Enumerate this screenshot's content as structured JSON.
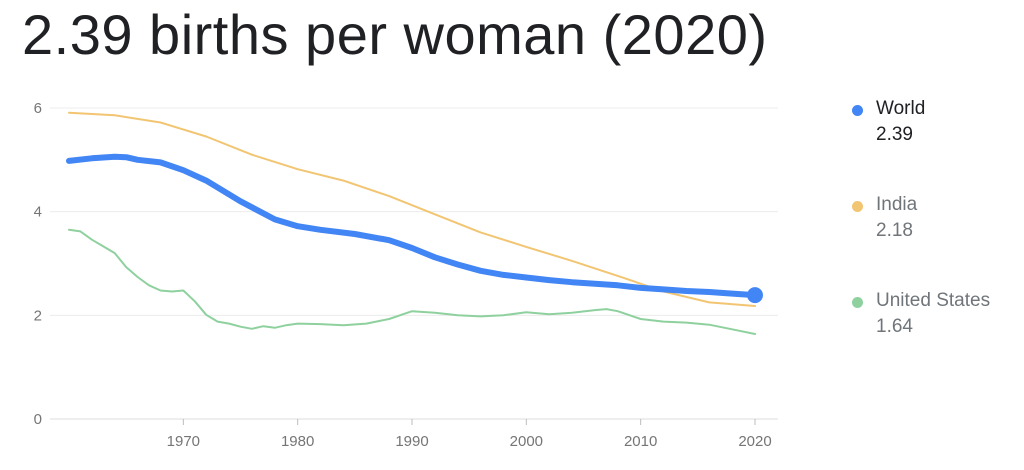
{
  "title": "2.39 births per woman (2020)",
  "chart_data": {
    "type": "line",
    "ylim": [
      0,
      6
    ],
    "xlim": [
      1960,
      2020
    ],
    "y_ticks": [
      0,
      2,
      4,
      6
    ],
    "x_ticks": [
      1970,
      1980,
      1990,
      2000,
      2010,
      2020
    ],
    "grid": true,
    "legend_position": "right",
    "highlight": {
      "series": "World",
      "x": 2020,
      "y": 2.39
    },
    "series": [
      {
        "name": "World",
        "value_label": "2.39",
        "color": "#4285f4",
        "width": 6,
        "x": [
          1960,
          1962,
          1964,
          1965,
          1966,
          1968,
          1970,
          1972,
          1975,
          1978,
          1980,
          1982,
          1985,
          1988,
          1990,
          1992,
          1994,
          1996,
          1998,
          2000,
          2002,
          2004,
          2006,
          2008,
          2010,
          2012,
          2014,
          2016,
          2018,
          2020
        ],
        "y": [
          4.98,
          5.03,
          5.06,
          5.05,
          5.0,
          4.95,
          4.8,
          4.6,
          4.2,
          3.85,
          3.72,
          3.65,
          3.57,
          3.45,
          3.3,
          3.12,
          2.98,
          2.86,
          2.78,
          2.73,
          2.68,
          2.64,
          2.61,
          2.58,
          2.53,
          2.5,
          2.47,
          2.45,
          2.42,
          2.39
        ]
      },
      {
        "name": "India",
        "value_label": "2.18",
        "color": "#f2c572",
        "width": 2,
        "x": [
          1960,
          1964,
          1968,
          1972,
          1976,
          1980,
          1984,
          1988,
          1992,
          1996,
          2000,
          2004,
          2008,
          2012,
          2016,
          2020
        ],
        "y": [
          5.91,
          5.86,
          5.72,
          5.45,
          5.1,
          4.82,
          4.6,
          4.3,
          3.95,
          3.6,
          3.32,
          3.05,
          2.76,
          2.46,
          2.25,
          2.18
        ]
      },
      {
        "name": "United States",
        "value_label": "1.64",
        "color": "#8fd19e",
        "width": 2,
        "x": [
          1960,
          1961,
          1962,
          1963,
          1964,
          1965,
          1966,
          1967,
          1968,
          1969,
          1970,
          1971,
          1972,
          1973,
          1974,
          1975,
          1976,
          1977,
          1978,
          1979,
          1980,
          1982,
          1984,
          1986,
          1988,
          1990,
          1992,
          1994,
          1996,
          1998,
          2000,
          2002,
          2004,
          2006,
          2007,
          2008,
          2010,
          2012,
          2014,
          2016,
          2018,
          2020
        ],
        "y": [
          3.65,
          3.62,
          3.46,
          3.33,
          3.2,
          2.93,
          2.74,
          2.58,
          2.48,
          2.46,
          2.48,
          2.27,
          2.01,
          1.88,
          1.84,
          1.78,
          1.74,
          1.79,
          1.76,
          1.81,
          1.84,
          1.83,
          1.81,
          1.84,
          1.93,
          2.08,
          2.05,
          2.0,
          1.98,
          2.0,
          2.06,
          2.02,
          2.05,
          2.1,
          2.12,
          2.08,
          1.93,
          1.88,
          1.86,
          1.82,
          1.73,
          1.64
        ]
      }
    ]
  }
}
